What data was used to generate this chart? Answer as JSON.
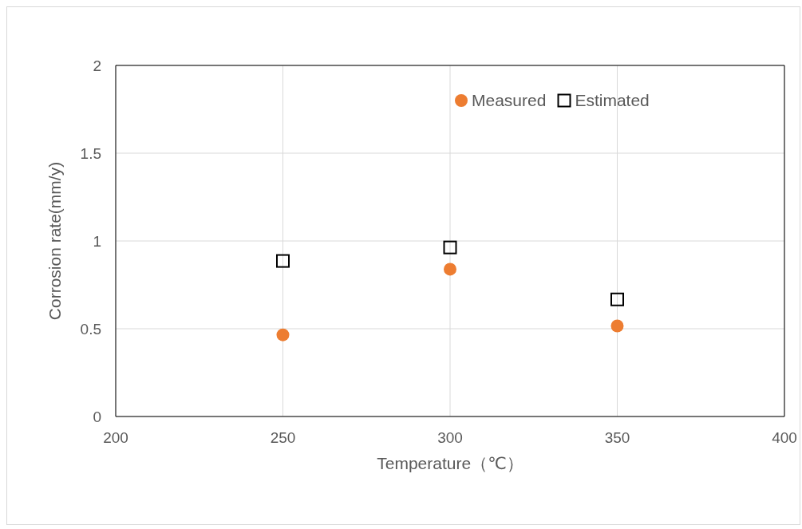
{
  "chart_data": {
    "type": "scatter",
    "xlabel": "Temperature（℃）",
    "ylabel": "Corrosion rate(mm/y)",
    "x": [
      250,
      300,
      350
    ],
    "series": [
      {
        "name": "Measured",
        "color": "#ed7d31",
        "marker": "circle",
        "values": [
          0.465,
          0.839,
          0.516
        ]
      },
      {
        "name": "Estimated",
        "color": "#000000",
        "marker": "square",
        "values": [
          0.886,
          0.963,
          0.667
        ]
      }
    ],
    "xlim": [
      200,
      400
    ],
    "xticks": [
      200,
      250,
      300,
      350,
      400
    ],
    "ylim": [
      0,
      2
    ],
    "yticks": [
      0,
      0.5,
      1,
      1.5,
      2
    ],
    "grid": true,
    "legend": "top"
  }
}
